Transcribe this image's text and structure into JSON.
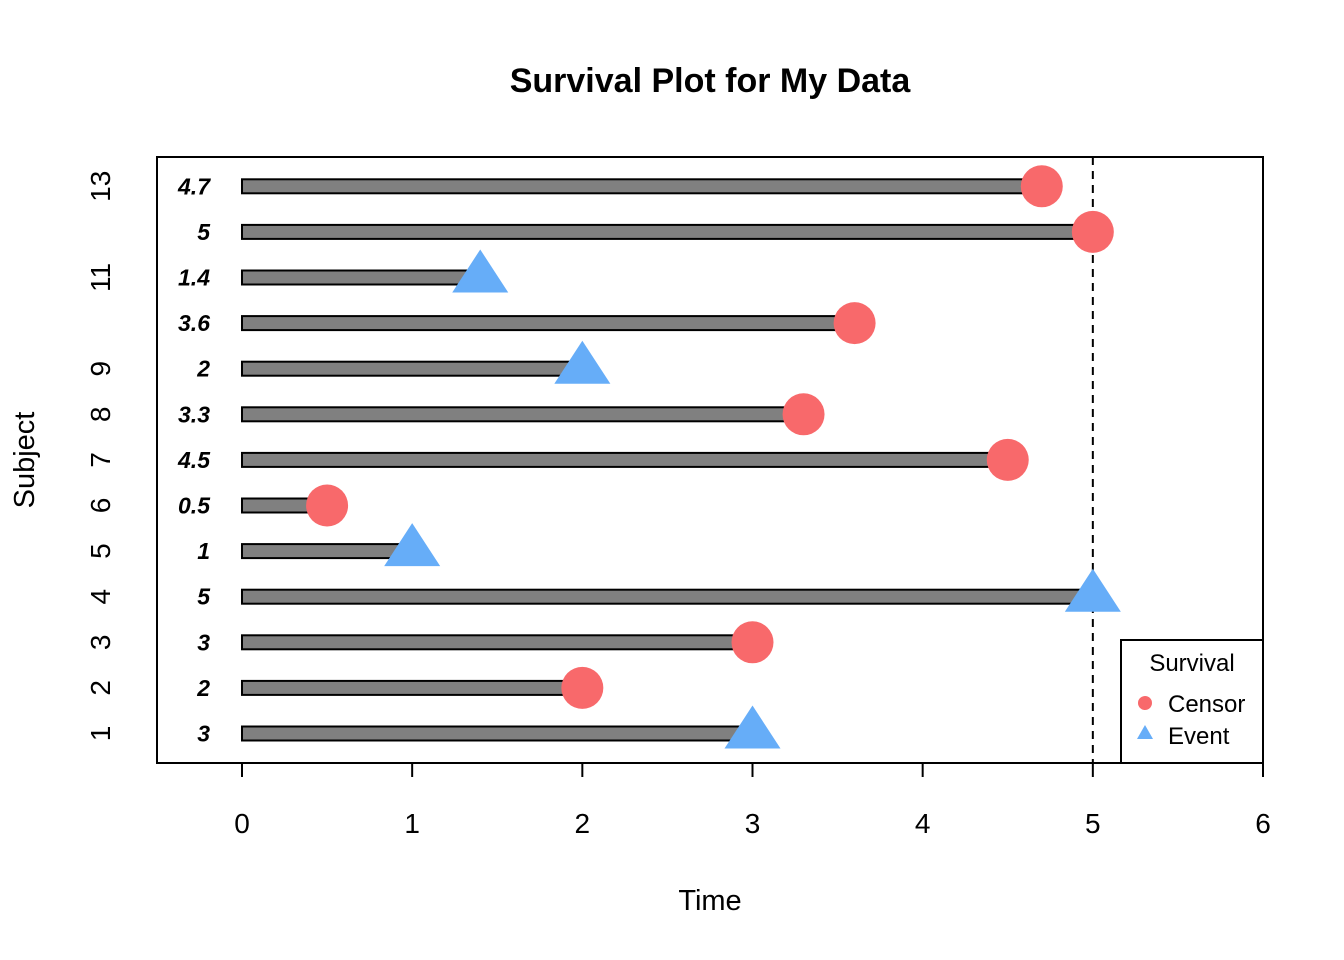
{
  "chart_data": {
    "type": "bar",
    "orientation": "horizontal",
    "title": "Survival Plot for My Data",
    "xlabel": "Time",
    "ylabel": "Subject",
    "xlim": [
      0,
      6
    ],
    "x_ticks": [
      "0",
      "1",
      "2",
      "3",
      "4",
      "5",
      "6"
    ],
    "y_ticks": [
      {
        "subject": 1,
        "label": "1"
      },
      {
        "subject": 2,
        "label": "2"
      },
      {
        "subject": 3,
        "label": "3"
      },
      {
        "subject": 4,
        "label": "4"
      },
      {
        "subject": 5,
        "label": "5"
      },
      {
        "subject": 6,
        "label": "6"
      },
      {
        "subject": 7,
        "label": "7"
      },
      {
        "subject": 8,
        "label": "8"
      },
      {
        "subject": 9,
        "label": "9"
      },
      {
        "subject": 11,
        "label": "11"
      },
      {
        "subject": 13,
        "label": "13"
      }
    ],
    "reference_line_x": 5,
    "bar_color": "#808080",
    "records": [
      {
        "subject": 1,
        "time": 3,
        "label": "3",
        "status": "Event"
      },
      {
        "subject": 2,
        "time": 2,
        "label": "2",
        "status": "Censor"
      },
      {
        "subject": 3,
        "time": 3,
        "label": "3",
        "status": "Censor"
      },
      {
        "subject": 4,
        "time": 5,
        "label": "5",
        "status": "Event"
      },
      {
        "subject": 5,
        "time": 1,
        "label": "1",
        "status": "Event"
      },
      {
        "subject": 6,
        "time": 0.5,
        "label": "0.5",
        "status": "Censor"
      },
      {
        "subject": 7,
        "time": 4.5,
        "label": "4.5",
        "status": "Censor"
      },
      {
        "subject": 8,
        "time": 3.3,
        "label": "3.3",
        "status": "Censor"
      },
      {
        "subject": 9,
        "time": 2,
        "label": "2",
        "status": "Event"
      },
      {
        "subject": 10,
        "time": 3.6,
        "label": "3.6",
        "status": "Censor"
      },
      {
        "subject": 11,
        "time": 1.4,
        "label": "1.4",
        "status": "Event"
      },
      {
        "subject": 12,
        "time": 5,
        "label": "5",
        "status": "Censor"
      },
      {
        "subject": 13,
        "time": 4.7,
        "label": "4.7",
        "status": "Censor"
      }
    ],
    "legend": {
      "title": "Survival",
      "placement": "bottom-right",
      "entries": [
        {
          "name": "Censor",
          "shape": "circle",
          "color": "#F8696B"
        },
        {
          "name": "Event",
          "shape": "triangle",
          "color": "#66ADF8"
        }
      ]
    },
    "grid": false
  }
}
